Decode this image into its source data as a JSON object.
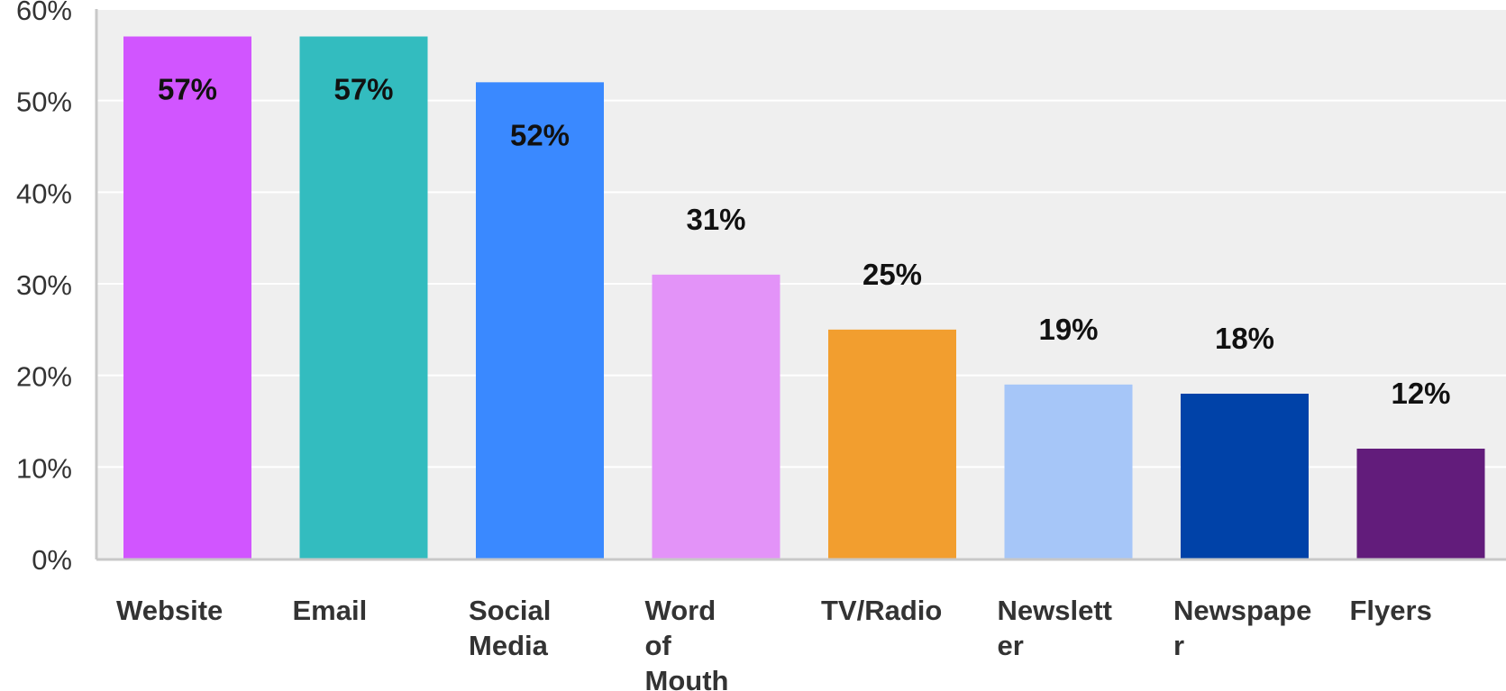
{
  "chart_data": {
    "type": "bar",
    "title": "",
    "xlabel": "",
    "ylabel": "",
    "categories": [
      "Website",
      "Email",
      "Social Media",
      "Word of Mouth",
      "TV/Radio",
      "Newsletter",
      "Newspaper",
      "Flyers"
    ],
    "category_lines": [
      [
        "Website"
      ],
      [
        "Email"
      ],
      [
        "Social",
        "Media"
      ],
      [
        "Word",
        "of",
        "Mouth"
      ],
      [
        "TV/Radio"
      ],
      [
        "Newslett",
        "er"
      ],
      [
        "Newspape",
        "r"
      ],
      [
        "Flyers"
      ]
    ],
    "values": [
      57,
      57,
      52,
      31,
      25,
      19,
      18,
      12
    ],
    "data_labels": [
      "57%",
      "57%",
      "52%",
      "31%",
      "25%",
      "19%",
      "18%",
      "12%"
    ],
    "colors": [
      "#d155ff",
      "#33bcbf",
      "#3a89ff",
      "#e393f8",
      "#f29e2f",
      "#a6c6f8",
      "#0042a8",
      "#621c7b"
    ],
    "ylim": [
      0,
      60
    ],
    "yticks": [
      0,
      10,
      20,
      30,
      40,
      50,
      60
    ],
    "ytick_labels": [
      "0%",
      "10%",
      "20%",
      "30%",
      "40%",
      "50%",
      "60%"
    ],
    "grid": true,
    "plot_background": "#efefef",
    "axis_color": "#c8c8c8"
  }
}
